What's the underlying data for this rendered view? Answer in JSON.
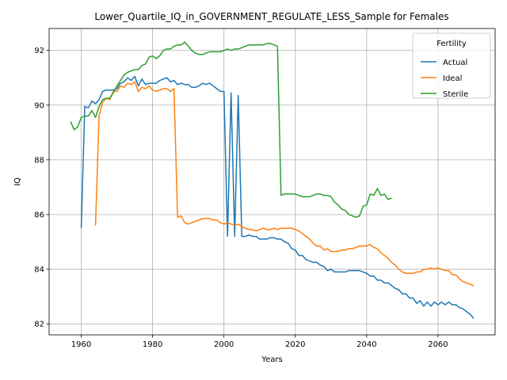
{
  "chart_data": {
    "type": "line",
    "title": "Lower_Quartile_IQ_in_GOVERNMENT_REGULATE_LESS_Sample for Females",
    "xlabel": "Years",
    "ylabel": "IQ",
    "xlim": [
      1951,
      2076
    ],
    "ylim": [
      81.6,
      92.8
    ],
    "xticks": [
      1960,
      1980,
      2000,
      2020,
      2040,
      2060
    ],
    "yticks": [
      82,
      84,
      86,
      88,
      90,
      92
    ],
    "grid": true,
    "legend": {
      "title": "Fertility",
      "position": "top-right"
    },
    "series": [
      {
        "name": "Actual",
        "color": "#1f77b4",
        "x": [
          1960,
          1961,
          1962,
          1963,
          1964,
          1965,
          1966,
          1967,
          1968,
          1969,
          1970,
          1971,
          1972,
          1973,
          1974,
          1975,
          1976,
          1977,
          1978,
          1979,
          1980,
          1981,
          1982,
          1983,
          1984,
          1985,
          1986,
          1987,
          1988,
          1989,
          1990,
          1991,
          1992,
          1993,
          1994,
          1995,
          1996,
          1997,
          1998,
          1999,
          2000,
          2001,
          2002,
          2003,
          2004,
          2005,
          2006,
          2007,
          2008,
          2009,
          2010,
          2011,
          2012,
          2013,
          2014,
          2015,
          2016,
          2017,
          2018,
          2019,
          2020,
          2021,
          2022,
          2023,
          2024,
          2025,
          2026,
          2027,
          2028,
          2029,
          2030,
          2031,
          2032,
          2033,
          2034,
          2035,
          2036,
          2037,
          2038,
          2039,
          2040,
          2041,
          2042,
          2043,
          2044,
          2045,
          2046,
          2047,
          2048,
          2049,
          2050,
          2051,
          2052,
          2053,
          2054,
          2055,
          2056,
          2057,
          2058,
          2059,
          2060,
          2061,
          2062,
          2063,
          2064,
          2065,
          2066,
          2067,
          2068,
          2069,
          2070
        ],
        "values": [
          85.5,
          89.95,
          89.9,
          90.15,
          90.05,
          90.2,
          90.5,
          90.55,
          90.55,
          90.55,
          90.6,
          90.8,
          90.85,
          91.0,
          90.9,
          91.05,
          90.7,
          90.95,
          90.75,
          90.8,
          90.8,
          90.8,
          90.9,
          90.95,
          91.0,
          90.85,
          90.9,
          90.75,
          90.8,
          90.75,
          90.75,
          90.65,
          90.65,
          90.7,
          90.8,
          90.75,
          90.8,
          90.7,
          90.6,
          90.5,
          90.5,
          85.2,
          90.45,
          85.2,
          90.35,
          85.2,
          85.2,
          85.25,
          85.2,
          85.2,
          85.1,
          85.1,
          85.1,
          85.15,
          85.15,
          85.1,
          85.1,
          85.0,
          84.95,
          84.75,
          84.7,
          84.5,
          84.5,
          84.35,
          84.3,
          84.25,
          84.25,
          84.15,
          84.1,
          83.95,
          84.0,
          83.9,
          83.9,
          83.9,
          83.9,
          83.95,
          83.95,
          83.95,
          83.95,
          83.9,
          83.85,
          83.75,
          83.75,
          83.6,
          83.6,
          83.5,
          83.5,
          83.4,
          83.3,
          83.25,
          83.1,
          83.1,
          82.95,
          82.95,
          82.75,
          82.85,
          82.65,
          82.8,
          82.65,
          82.8,
          82.7,
          82.8,
          82.7,
          82.8,
          82.7,
          82.7,
          82.6,
          82.55,
          82.45,
          82.35,
          82.2
        ]
      },
      {
        "name": "Ideal",
        "color": "#ff7f0e",
        "x": [
          1964,
          1965,
          1966,
          1967,
          1968,
          1969,
          1970,
          1971,
          1972,
          1973,
          1974,
          1975,
          1976,
          1977,
          1978,
          1979,
          1980,
          1981,
          1982,
          1983,
          1984,
          1985,
          1986,
          1987,
          1988,
          1989,
          1990,
          1991,
          1992,
          1993,
          1994,
          1995,
          1996,
          1997,
          1998,
          1999,
          2000,
          2001,
          2002,
          2003,
          2004,
          2005,
          2006,
          2007,
          2008,
          2009,
          2010,
          2011,
          2012,
          2013,
          2014,
          2015,
          2016,
          2017,
          2018,
          2019,
          2020,
          2021,
          2022,
          2023,
          2024,
          2025,
          2026,
          2027,
          2028,
          2029,
          2030,
          2031,
          2032,
          2033,
          2034,
          2035,
          2036,
          2037,
          2038,
          2039,
          2040,
          2041,
          2042,
          2043,
          2044,
          2045,
          2046,
          2047,
          2048,
          2049,
          2050,
          2051,
          2052,
          2053,
          2054,
          2055,
          2056,
          2057,
          2058,
          2059,
          2060,
          2061,
          2062,
          2063,
          2064,
          2065,
          2066,
          2067,
          2068,
          2069,
          2070
        ],
        "values": [
          85.6,
          89.6,
          90.1,
          90.25,
          90.2,
          90.5,
          90.5,
          90.7,
          90.65,
          90.8,
          90.75,
          90.85,
          90.5,
          90.65,
          90.6,
          90.7,
          90.55,
          90.5,
          90.55,
          90.6,
          90.6,
          90.5,
          90.6,
          85.9,
          85.95,
          85.7,
          85.65,
          85.7,
          85.75,
          85.8,
          85.85,
          85.85,
          85.85,
          85.8,
          85.8,
          85.7,
          85.65,
          85.7,
          85.65,
          85.6,
          85.65,
          85.55,
          85.5,
          85.45,
          85.45,
          85.4,
          85.45,
          85.5,
          85.45,
          85.45,
          85.5,
          85.45,
          85.5,
          85.5,
          85.5,
          85.5,
          85.45,
          85.4,
          85.3,
          85.2,
          85.1,
          84.95,
          84.85,
          84.85,
          84.7,
          84.75,
          84.65,
          84.65,
          84.65,
          84.7,
          84.7,
          84.75,
          84.75,
          84.8,
          84.85,
          84.85,
          84.85,
          84.9,
          84.8,
          84.75,
          84.6,
          84.5,
          84.4,
          84.25,
          84.15,
          84.0,
          83.9,
          83.85,
          83.85,
          83.85,
          83.9,
          83.9,
          84.0,
          84.0,
          84.05,
          84.0,
          84.05,
          84.0,
          83.95,
          83.95,
          83.8,
          83.8,
          83.65,
          83.55,
          83.5,
          83.45,
          83.4
        ]
      },
      {
        "name": "Sterile",
        "color": "#2ca02c",
        "x": [
          1957,
          1958,
          1959,
          1960,
          1961,
          1962,
          1963,
          1964,
          1965,
          1966,
          1967,
          1968,
          1969,
          1970,
          1971,
          1972,
          1973,
          1974,
          1975,
          1976,
          1977,
          1978,
          1979,
          1980,
          1981,
          1982,
          1983,
          1984,
          1985,
          1986,
          1987,
          1988,
          1989,
          1990,
          1991,
          1992,
          1993,
          1994,
          1995,
          1996,
          1997,
          1998,
          1999,
          2000,
          2001,
          2002,
          2003,
          2004,
          2005,
          2006,
          2007,
          2008,
          2009,
          2010,
          2011,
          2012,
          2013,
          2014,
          2015,
          2016,
          2017,
          2018,
          2019,
          2020,
          2021,
          2022,
          2023,
          2024,
          2025,
          2026,
          2027,
          2028,
          2029,
          2030,
          2031,
          2032,
          2033,
          2034,
          2035,
          2036,
          2037,
          2038,
          2039,
          2040,
          2041,
          2042,
          2043,
          2044,
          2045,
          2046,
          2047
        ],
        "values": [
          89.4,
          89.1,
          89.2,
          89.55,
          89.6,
          89.6,
          89.8,
          89.55,
          89.95,
          90.2,
          90.25,
          90.25,
          90.45,
          90.7,
          90.9,
          91.1,
          91.2,
          91.25,
          91.3,
          91.3,
          91.45,
          91.5,
          91.75,
          91.8,
          91.7,
          91.8,
          92.0,
          92.05,
          92.05,
          92.15,
          92.2,
          92.2,
          92.3,
          92.15,
          92.0,
          91.9,
          91.85,
          91.85,
          91.9,
          91.95,
          91.95,
          91.95,
          91.95,
          92.0,
          92.05,
          92.0,
          92.05,
          92.05,
          92.1,
          92.15,
          92.2,
          92.2,
          92.2,
          92.2,
          92.2,
          92.25,
          92.25,
          92.2,
          92.15,
          86.7,
          86.75,
          86.75,
          86.75,
          86.75,
          86.7,
          86.65,
          86.65,
          86.65,
          86.7,
          86.75,
          86.75,
          86.7,
          86.7,
          86.65,
          86.45,
          86.35,
          86.2,
          86.15,
          86.0,
          85.95,
          85.9,
          85.95,
          86.3,
          86.35,
          86.75,
          86.7,
          86.95,
          86.7,
          86.75,
          86.55,
          86.6
        ]
      }
    ]
  }
}
